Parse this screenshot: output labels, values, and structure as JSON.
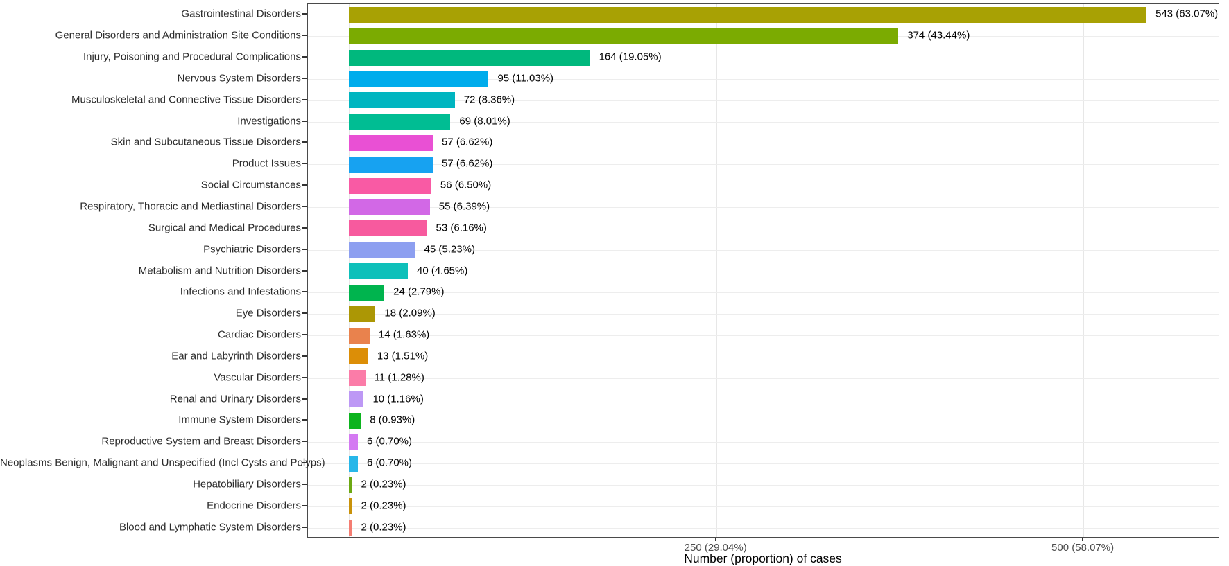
{
  "chart_data": {
    "type": "bar",
    "orientation": "horizontal",
    "title": "",
    "xlabel": "Number (proportion) of cases",
    "ylabel": "",
    "grid": true,
    "legend": false,
    "x_range": [
      -28,
      593
    ],
    "x_major_gridlines": [
      0,
      250,
      500
    ],
    "x_minor_gridlines": [
      125,
      375
    ],
    "x_ticks": [
      {
        "value": 250,
        "label": "250 (29.04%)"
      },
      {
        "value": 500,
        "label": "500 (58.07%)"
      }
    ],
    "bars": [
      {
        "category": "Gastrointestinal Disorders",
        "value": 543,
        "label": "543 (63.07%)",
        "color": "#a8a104"
      },
      {
        "category": "General Disorders and Administration Site Conditions",
        "value": 374,
        "label": "374 (43.44%)",
        "color": "#7bab01"
      },
      {
        "category": "Injury, Poisoning and Procedural Complications",
        "value": 164,
        "label": "164 (19.05%)",
        "color": "#00b87d"
      },
      {
        "category": "Nervous System Disorders",
        "value": 95,
        "label": "95 (11.03%)",
        "color": "#00acec"
      },
      {
        "category": "Musculoskeletal and Connective Tissue Disorders",
        "value": 72,
        "label": "72 (8.36%)",
        "color": "#00b5c0"
      },
      {
        "category": "Investigations",
        "value": 69,
        "label": "69 (8.01%)",
        "color": "#00bd93"
      },
      {
        "category": "Skin and Subcutaneous Tissue Disorders",
        "value": 57,
        "label": "57 (6.62%)",
        "color": "#e950d4"
      },
      {
        "category": "Product Issues",
        "value": 57,
        "label": "57 (6.62%)",
        "color": "#17a2f1"
      },
      {
        "category": "Social Circumstances",
        "value": 56,
        "label": "56 (6.50%)",
        "color": "#f95aa4"
      },
      {
        "category": "Respiratory, Thoracic and Mediastinal Disorders",
        "value": 55,
        "label": "55 (6.39%)",
        "color": "#d268e6"
      },
      {
        "category": "Surgical and Medical Procedures",
        "value": 53,
        "label": "53 (6.16%)",
        "color": "#f75a9e"
      },
      {
        "category": "Psychiatric Disorders",
        "value": 45,
        "label": "45 (5.23%)",
        "color": "#8d9ff0"
      },
      {
        "category": "Metabolism and Nutrition Disorders",
        "value": 40,
        "label": "40 (4.65%)",
        "color": "#0ec0ba"
      },
      {
        "category": "Infections and Infestations",
        "value": 24,
        "label": "24 (2.79%)",
        "color": "#00b44e"
      },
      {
        "category": "Eye Disorders",
        "value": 18,
        "label": "18 (2.09%)",
        "color": "#ac9705"
      },
      {
        "category": "Cardiac Disorders",
        "value": 14,
        "label": "14 (1.63%)",
        "color": "#e9824d"
      },
      {
        "category": "Ear and Labyrinth Disorders",
        "value": 13,
        "label": "13 (1.51%)",
        "color": "#dc8e07"
      },
      {
        "category": "Vascular Disorders",
        "value": 11,
        "label": "11 (1.28%)",
        "color": "#fb7ca8"
      },
      {
        "category": "Renal and Urinary Disorders",
        "value": 10,
        "label": "10 (1.16%)",
        "color": "#bd98f5"
      },
      {
        "category": "Immune System Disorders",
        "value": 8,
        "label": "8 (0.93%)",
        "color": "#0cb41e"
      },
      {
        "category": "Reproductive System and Breast Disorders",
        "value": 6,
        "label": "6 (0.70%)",
        "color": "#d47af2"
      },
      {
        "category": "Neoplasms Benign, Malignant and Unspecified (Incl Cysts and Polyps)",
        "value": 6,
        "label": "6 (0.70%)",
        "color": "#27b7e9"
      },
      {
        "category": "Hepatobiliary Disorders",
        "value": 2,
        "label": "2 (0.23%)",
        "color": "#6ca812"
      },
      {
        "category": "Endocrine Disorders",
        "value": 2,
        "label": "2 (0.23%)",
        "color": "#c9920a"
      },
      {
        "category": "Blood and Lymphatic System Disorders",
        "value": 2,
        "label": "2 (0.23%)",
        "color": "#f47d72"
      }
    ]
  }
}
